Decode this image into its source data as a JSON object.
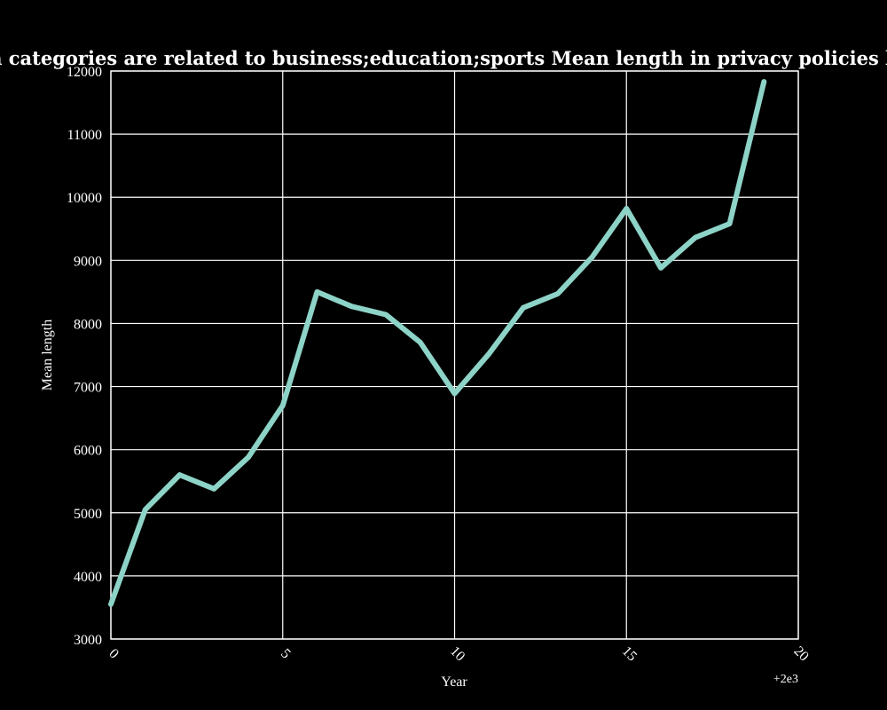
{
  "chart_data": {
    "type": "line",
    "title": "when categories are related to business;education;sports Mean length in privacy policies by Year",
    "xlabel": "Year",
    "ylabel": "Mean length",
    "x_offset_label": "+2e3",
    "xlim": [
      0,
      20
    ],
    "ylim": [
      3000,
      12000
    ],
    "x_ticks": [
      "0",
      "5",
      "10",
      "15",
      "20"
    ],
    "y_ticks": [
      "3000",
      "4000",
      "5000",
      "6000",
      "7000",
      "8000",
      "9000",
      "10000",
      "11000",
      "12000"
    ],
    "grid": true,
    "line_color": "#8dd3c7",
    "background": "#000000",
    "series": [
      {
        "x": [
          0,
          1,
          2,
          3,
          4,
          5,
          6,
          7,
          8,
          9,
          10,
          11,
          12,
          13,
          14,
          15,
          16,
          17,
          18,
          19
        ],
        "values": [
          3550,
          5050,
          5600,
          5380,
          5880,
          6700,
          8500,
          8270,
          8140,
          7700,
          6890,
          7520,
          8250,
          8470,
          9050,
          9820,
          8880,
          9360,
          9580,
          11830
        ]
      }
    ]
  }
}
